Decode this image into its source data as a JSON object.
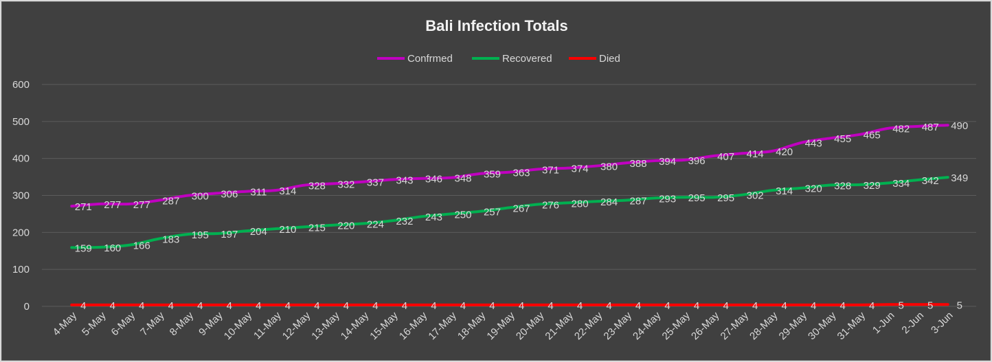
{
  "chart_data": {
    "type": "line",
    "title": "Bali Infection Totals",
    "xlabel": "",
    "ylabel": "",
    "ylim": [
      0,
      600
    ],
    "yticks": [
      0,
      100,
      200,
      300,
      400,
      500,
      600
    ],
    "grid": true,
    "legend_position": "top",
    "x": [
      "4-May",
      "5-May",
      "6-May",
      "7-May",
      "8-May",
      "9-May",
      "10-May",
      "11-May",
      "12-May",
      "13-May",
      "14-May",
      "15-May",
      "16-May",
      "17-May",
      "18-May",
      "19-May",
      "20-May",
      "21-May",
      "22-May",
      "23-May",
      "24-May",
      "25-May",
      "26-May",
      "27-May",
      "28-May",
      "29-May",
      "30-May",
      "31-May",
      "1-Jun",
      "2-Jun",
      "3-Jun"
    ],
    "series": [
      {
        "name": "Confrmed",
        "color": "#c000c0",
        "values": [
          271,
          277,
          277,
          287,
          300,
          306,
          311,
          314,
          328,
          332,
          337,
          343,
          346,
          348,
          359,
          363,
          371,
          374,
          380,
          388,
          394,
          396,
          407,
          414,
          420,
          443,
          455,
          465,
          482,
          487,
          490
        ]
      },
      {
        "name": "Recovered",
        "color": "#00b050",
        "values": [
          159,
          160,
          166,
          183,
          195,
          197,
          204,
          210,
          215,
          220,
          224,
          232,
          243,
          250,
          257,
          267,
          276,
          280,
          284,
          287,
          293,
          295,
          295,
          302,
          314,
          320,
          328,
          329,
          334,
          342,
          349
        ]
      },
      {
        "name": "Died",
        "color": "#ff0000",
        "values": [
          4,
          4,
          4,
          4,
          4,
          4,
          4,
          4,
          4,
          4,
          4,
          4,
          4,
          4,
          4,
          4,
          4,
          4,
          4,
          4,
          4,
          4,
          4,
          4,
          4,
          4,
          4,
          4,
          5,
          5,
          5
        ]
      }
    ]
  }
}
